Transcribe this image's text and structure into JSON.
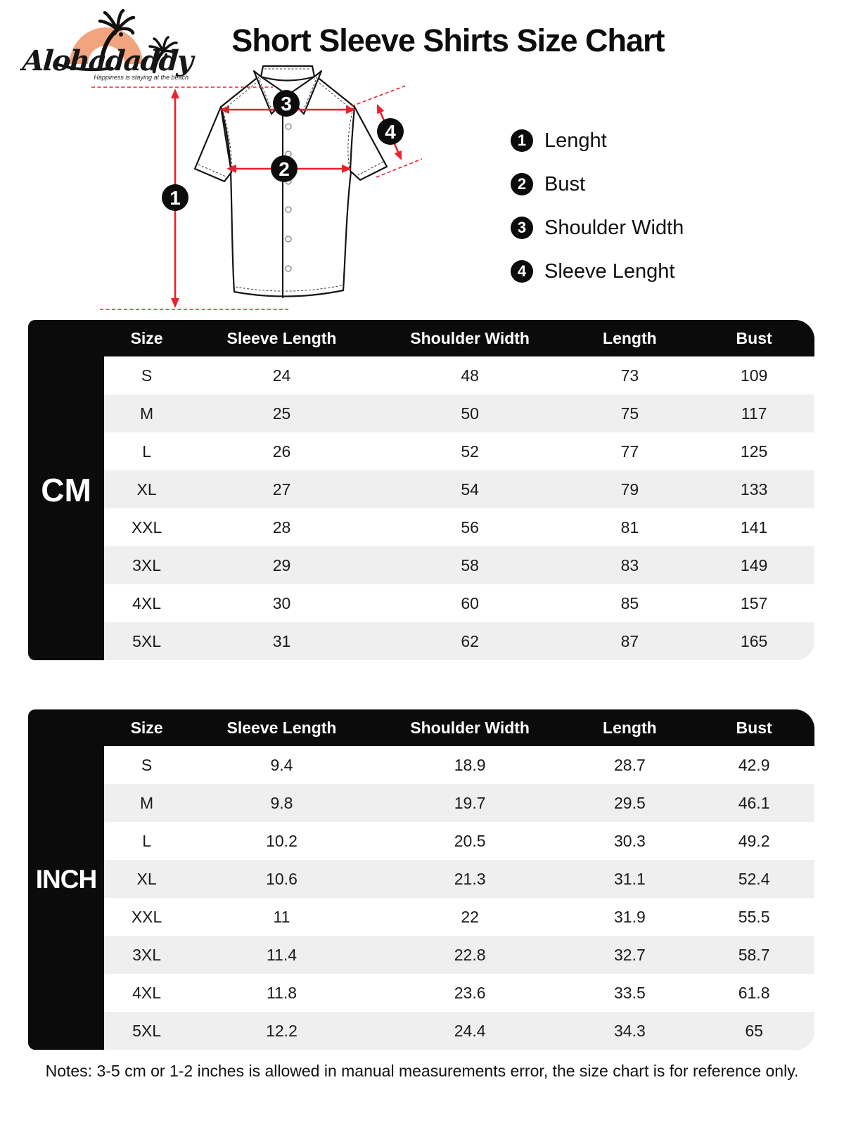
{
  "brand": {
    "name": "Alohadaddy",
    "tagline": "Happiness is staying at the beach"
  },
  "title": "Short Sleeve Shirts Size Chart",
  "legend": [
    {
      "num": "1",
      "label": "Lenght"
    },
    {
      "num": "2",
      "label": "Bust"
    },
    {
      "num": "3",
      "label": "Shoulder Width"
    },
    {
      "num": "4",
      "label": "Sleeve Lenght"
    }
  ],
  "diagram": {
    "markers": [
      "1",
      "2",
      "3",
      "4"
    ]
  },
  "tables": [
    {
      "unit": "CM",
      "headers": [
        "Size",
        "Sleeve Length",
        "Shoulder Width",
        "Length",
        "Bust"
      ],
      "rows": [
        [
          "S",
          "24",
          "48",
          "73",
          "109"
        ],
        [
          "M",
          "25",
          "50",
          "75",
          "117"
        ],
        [
          "L",
          "26",
          "52",
          "77",
          "125"
        ],
        [
          "XL",
          "27",
          "54",
          "79",
          "133"
        ],
        [
          "XXL",
          "28",
          "56",
          "81",
          "141"
        ],
        [
          "3XL",
          "29",
          "58",
          "83",
          "149"
        ],
        [
          "4XL",
          "30",
          "60",
          "85",
          "157"
        ],
        [
          "5XL",
          "31",
          "62",
          "87",
          "165"
        ]
      ]
    },
    {
      "unit": "INCH",
      "headers": [
        "Size",
        "Sleeve Length",
        "Shoulder Width",
        "Length",
        "Bust"
      ],
      "rows": [
        [
          "S",
          "9.4",
          "18.9",
          "28.7",
          "42.9"
        ],
        [
          "M",
          "9.8",
          "19.7",
          "29.5",
          "46.1"
        ],
        [
          "L",
          "10.2",
          "20.5",
          "30.3",
          "49.2"
        ],
        [
          "XL",
          "10.6",
          "21.3",
          "31.1",
          "52.4"
        ],
        [
          "XXL",
          "11",
          "22",
          "31.9",
          "55.5"
        ],
        [
          "3XL",
          "11.4",
          "22.8",
          "32.7",
          "58.7"
        ],
        [
          "4XL",
          "11.8",
          "23.6",
          "33.5",
          "61.8"
        ],
        [
          "5XL",
          "12.2",
          "24.4",
          "34.3",
          "65"
        ]
      ]
    }
  ],
  "notes": "Notes: 3-5 cm or 1-2 inches is allowed in manual measurements error, the size chart is for reference only.",
  "colors": {
    "accent_red": "#e8212d",
    "logo_orange": "#F2A47E",
    "row_alt": "#efefef",
    "table_black": "#0b0b0b"
  }
}
